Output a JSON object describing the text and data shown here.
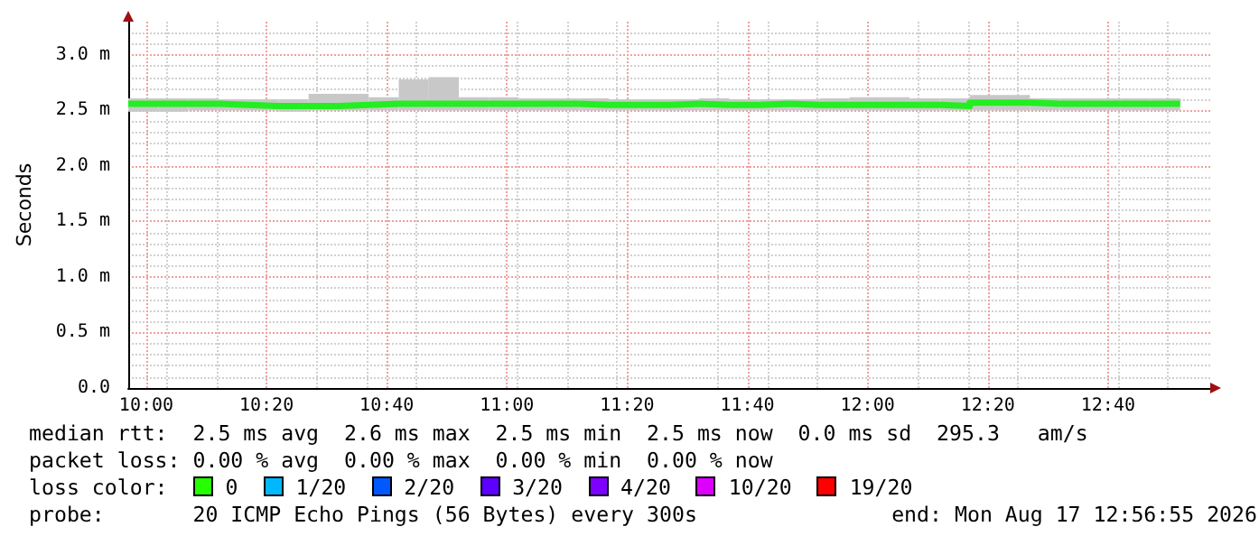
{
  "chart_data": {
    "type": "step",
    "ylabel": "Seconds",
    "grid": true,
    "xlim": [
      "2026-08-17T09:57",
      "2026-08-17T12:57"
    ],
    "xticks": [
      {
        "value": "2026-08-17T10:00",
        "label": "10:00"
      },
      {
        "value": "2026-08-17T10:20",
        "label": "10:20"
      },
      {
        "value": "2026-08-17T10:40",
        "label": "10:40"
      },
      {
        "value": "2026-08-17T11:00",
        "label": "11:00"
      },
      {
        "value": "2026-08-17T11:20",
        "label": "11:20"
      },
      {
        "value": "2026-08-17T11:40",
        "label": "11:40"
      },
      {
        "value": "2026-08-17T12:00",
        "label": "12:00"
      },
      {
        "value": "2026-08-17T12:20",
        "label": "12:20"
      },
      {
        "value": "2026-08-17T12:40",
        "label": "12:40"
      }
    ],
    "ylim": [
      0,
      3.3
    ],
    "yticks": [
      {
        "value": 0,
        "label": "0.0"
      },
      {
        "value": 0.5,
        "label": "0.5 m"
      },
      {
        "value": 1,
        "label": "1.0 m"
      },
      {
        "value": 1.5,
        "label": "1.5 m"
      },
      {
        "value": 2,
        "label": "2.0 m"
      },
      {
        "value": 2.5,
        "label": "2.5 m"
      },
      {
        "value": 3,
        "label": "3.0 m"
      }
    ],
    "x": [
      "2026-08-17T09:57",
      "2026-08-17T10:02",
      "2026-08-17T10:07",
      "2026-08-17T10:12",
      "2026-08-17T10:17",
      "2026-08-17T10:22",
      "2026-08-17T10:27",
      "2026-08-17T10:32",
      "2026-08-17T10:37",
      "2026-08-17T10:42",
      "2026-08-17T10:47",
      "2026-08-17T10:52",
      "2026-08-17T10:57",
      "2026-08-17T11:02",
      "2026-08-17T11:07",
      "2026-08-17T11:12",
      "2026-08-17T11:17",
      "2026-08-17T11:22",
      "2026-08-17T11:27",
      "2026-08-17T11:32",
      "2026-08-17T11:37",
      "2026-08-17T11:42",
      "2026-08-17T11:47",
      "2026-08-17T11:52",
      "2026-08-17T11:57",
      "2026-08-17T12:02",
      "2026-08-17T12:07",
      "2026-08-17T12:12",
      "2026-08-17T12:17",
      "2026-08-17T12:22",
      "2026-08-17T12:27",
      "2026-08-17T12:32",
      "2026-08-17T12:37",
      "2026-08-17T12:42",
      "2026-08-17T12:47",
      "2026-08-17T12:52"
    ],
    "series": [
      {
        "color": "#22ee22",
        "values": [
          2.56,
          2.56,
          2.56,
          2.55,
          2.54,
          2.54,
          2.54,
          2.55,
          2.56,
          2.56,
          2.56,
          2.56,
          2.56,
          2.56,
          2.56,
          2.55,
          2.55,
          2.55,
          2.56,
          2.55,
          2.55,
          2.56,
          2.55,
          2.55,
          2.55,
          2.55,
          2.55,
          2.54,
          2.57,
          2.57,
          2.56,
          2.56,
          2.56,
          2.56,
          2.56,
          2.56
        ],
        "lower": [
          2.49,
          2.49,
          2.5,
          2.5,
          2.5,
          2.49,
          2.5,
          2.5,
          2.5,
          2.5,
          2.5,
          2.5,
          2.5,
          2.5,
          2.5,
          2.5,
          2.5,
          2.5,
          2.5,
          2.5,
          2.5,
          2.5,
          2.5,
          2.5,
          2.5,
          2.5,
          2.5,
          2.5,
          2.5,
          2.5,
          2.5,
          2.5,
          2.5,
          2.5,
          2.5,
          2.5
        ],
        "upper": [
          2.61,
          2.61,
          2.61,
          2.6,
          2.6,
          2.6,
          2.65,
          2.65,
          2.62,
          2.78,
          2.8,
          2.62,
          2.62,
          2.61,
          2.61,
          2.61,
          2.6,
          2.6,
          2.6,
          2.61,
          2.6,
          2.6,
          2.6,
          2.61,
          2.62,
          2.62,
          2.61,
          2.61,
          2.64,
          2.64,
          2.61,
          2.61,
          2.61,
          2.61,
          2.61,
          2.61
        ]
      }
    ],
    "annotations": [
      "median rtt:  2.5 ms avg  2.6 ms max  2.5 ms min  2.5 ms now  0.0 ms sd  295.3   am/s",
      "packet loss: 0.00 % avg  0.00 % max  0.00 % min  0.00 % now",
      "loss color:",
      "0",
      "1/20",
      "2/20",
      "3/20",
      "4/20",
      "10/20",
      "19/20",
      "probe:       20 ICMP Echo Pings (56 Bytes) every 300s",
      "end: Mon Aug 17 12:56:55 2026"
    ]
  }
}
